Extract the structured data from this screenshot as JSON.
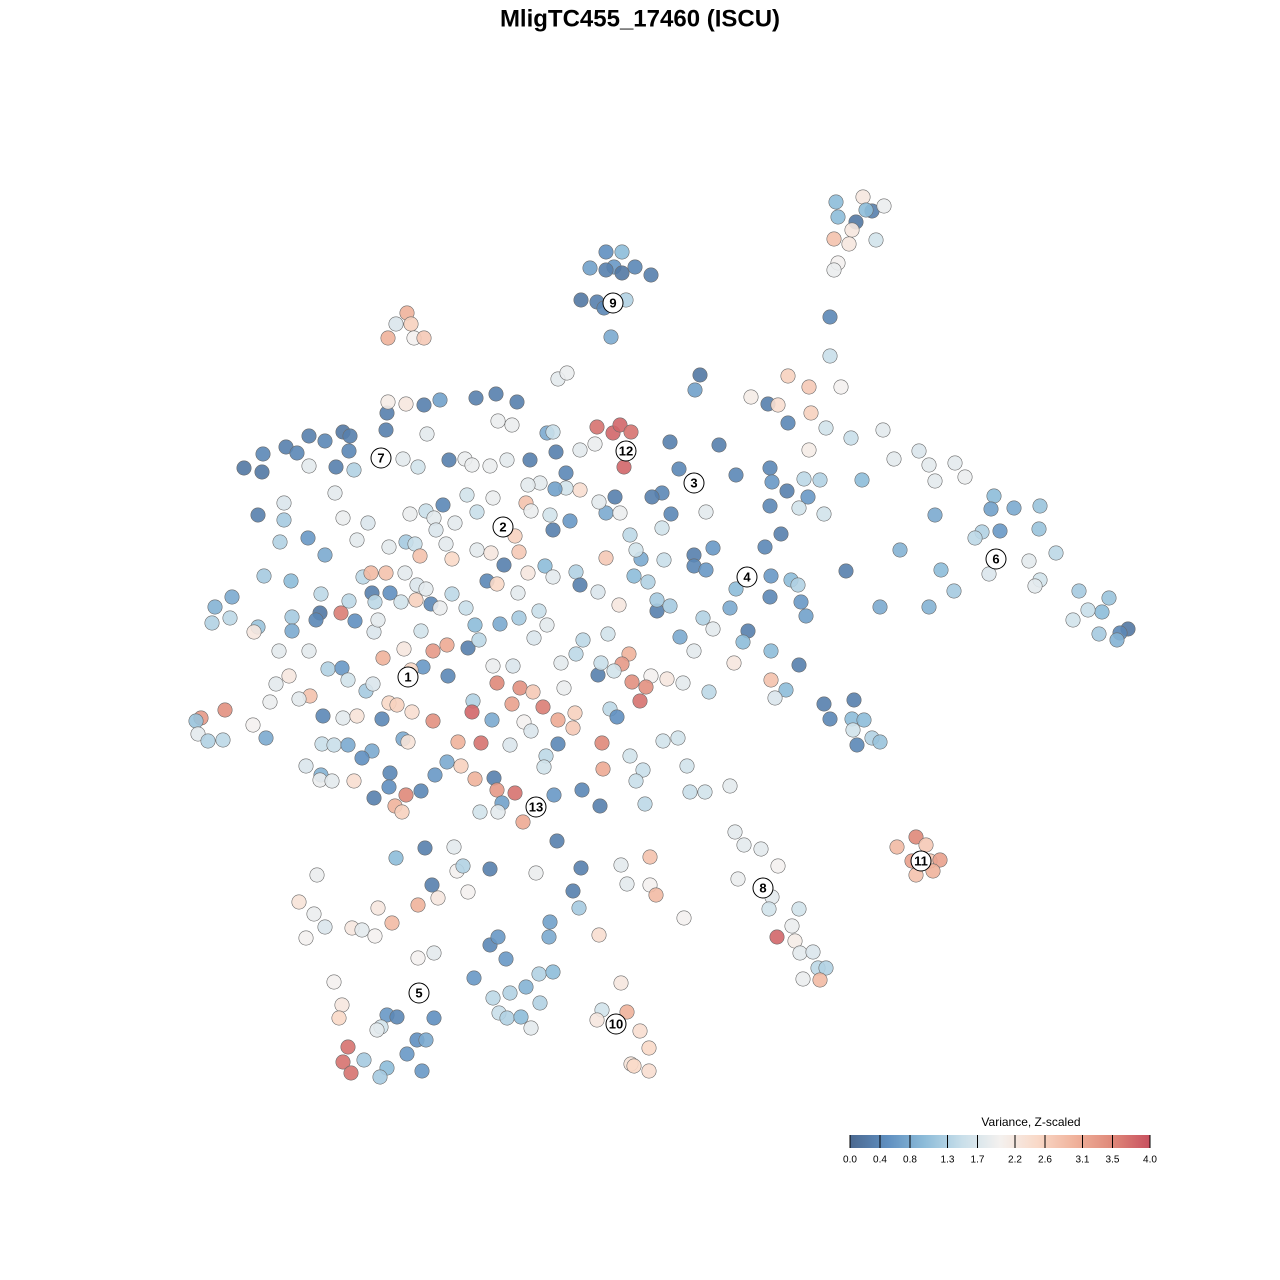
{
  "chart_data": {
    "type": "scatter",
    "title": "MligTC455_17460 (ISCU)",
    "xlim": [
      0,
      1280
    ],
    "ylim": [
      0,
      1280
    ],
    "x": [
      606,
      622,
      614,
      590,
      606,
      622,
      635,
      651,
      581,
      597,
      604,
      626,
      611,
      836,
      863,
      872,
      884,
      866,
      838,
      856,
      852,
      834,
      849,
      876,
      838,
      834,
      830,
      830,
      407,
      396,
      411,
      388,
      414,
      424,
      788,
      809,
      841,
      751,
      768,
      778,
      811,
      788,
      826,
      851,
      883,
      809,
      894,
      919,
      929,
      955,
      965,
      935,
      862,
      994,
      1014,
      1040,
      1039,
      991,
      935,
      982,
      975,
      1000,
      1056,
      1029,
      989,
      1040,
      1035,
      941,
      954,
      1079,
      1109,
      1102,
      1088,
      1128,
      1120,
      1099,
      1117,
      1073,
      929,
      880,
      846,
      900,
      916,
      926,
      897,
      912,
      930,
      940,
      933,
      916,
      735,
      744,
      761,
      778,
      738,
      772,
      769,
      799,
      792,
      777,
      795,
      800,
      813,
      818,
      826,
      803,
      820,
      621,
      602,
      627,
      597,
      640,
      649,
      631,
      634,
      649,
      334,
      342,
      339,
      434,
      387,
      397,
      381,
      377,
      417,
      426,
      348,
      364,
      407,
      387,
      422,
      343,
      351,
      380,
      490,
      498,
      550,
      549,
      506,
      474,
      539,
      553,
      493,
      510,
      526,
      540,
      499,
      507,
      521,
      531,
      317,
      299,
      314,
      325,
      306,
      352,
      362,
      375,
      378,
      392,
      418,
      438,
      432,
      457,
      463,
      468,
      490,
      536,
      573,
      579,
      581,
      425,
      396,
      454,
      557,
      418,
      434,
      627,
      650,
      621,
      650,
      656,
      684,
      599,
      244,
      262,
      263,
      286,
      297,
      309,
      325,
      343,
      350,
      349,
      336,
      354,
      309,
      387,
      386,
      388,
      406,
      424,
      440,
      476,
      496,
      517,
      498,
      512,
      427,
      403,
      418,
      449,
      465,
      472,
      490,
      507,
      530,
      547,
      553,
      556,
      566,
      580,
      595,
      597,
      613,
      620,
      631,
      624,
      670,
      679,
      719,
      558,
      567,
      700,
      695,
      770,
      736,
      772,
      787,
      804,
      820,
      808,
      799,
      824,
      770,
      781,
      765,
      713,
      694,
      694,
      706,
      736,
      770,
      791,
      801,
      806,
      798,
      771,
      730,
      748,
      743,
      771,
      799,
      734,
      771,
      786,
      775,
      824,
      854,
      830,
      852,
      864,
      853,
      872,
      880,
      857,
      662,
      652,
      671,
      706,
      662,
      258,
      284,
      284,
      280,
      308,
      325,
      343,
      368,
      335,
      264,
      291,
      321,
      232,
      215,
      212,
      230,
      258,
      254,
      292,
      320,
      316,
      292,
      341,
      355,
      374,
      378,
      279,
      309,
      276,
      289,
      310,
      299,
      270,
      253,
      266,
      225,
      201,
      196,
      198,
      208,
      223,
      328,
      342,
      348,
      366,
      373,
      323,
      343,
      357,
      382,
      389,
      397,
      412,
      433,
      403,
      408,
      372,
      322,
      334,
      348,
      362,
      306,
      321,
      320,
      332,
      354,
      390,
      389,
      374,
      395,
      402,
      406,
      421,
      435,
      447,
      357,
      389,
      406,
      415,
      420,
      446,
      452,
      477,
      491,
      519,
      528,
      504,
      487,
      497,
      518,
      545,
      553,
      576,
      580,
      598,
      606,
      634,
      648,
      641,
      664,
      636,
      630,
      606,
      620,
      599,
      615,
      580,
      566,
      555,
      540,
      528,
      526,
      515,
      531,
      550,
      553,
      570,
      493,
      477,
      467,
      443,
      426,
      434,
      410,
      436,
      455,
      417,
      405,
      390,
      401,
      416,
      426,
      431,
      440,
      466,
      452,
      372,
      363,
      371,
      386,
      375,
      349,
      383,
      404,
      421,
      433,
      447,
      468,
      448,
      423,
      411,
      479,
      475,
      500,
      519,
      534,
      547,
      539,
      513,
      493,
      497,
      520,
      533,
      564,
      473,
      472,
      492,
      512,
      524,
      543,
      558,
      575,
      573,
      558,
      546,
      544,
      510,
      531,
      481,
      458,
      461,
      475,
      494,
      497,
      515,
      502,
      480,
      498,
      523,
      554,
      582,
      600,
      603,
      602,
      630,
      643,
      636,
      645,
      663,
      678,
      687,
      690,
      705,
      730,
      709,
      683,
      667,
      651,
      646,
      632,
      640,
      629,
      622,
      614,
      598,
      601,
      576,
      583,
      561,
      610,
      617,
      657,
      657,
      680,
      694,
      713,
      703,
      670,
      619,
      608
    ],
    "y": [
      1028,
      1028,
      1013,
      1012,
      1010,
      1007,
      1013,
      1005,
      980,
      978,
      972,
      980,
      943,
      1078,
      1083,
      1069,
      1074,
      1070,
      1063,
      1058,
      1050,
      1041,
      1036,
      1040,
      1017,
      1010,
      963,
      924,
      967,
      956,
      956,
      942,
      942,
      942,
      904,
      893,
      893,
      883,
      876,
      875,
      867,
      857,
      852,
      842,
      850,
      830,
      821,
      829,
      815,
      817,
      803,
      799,
      800,
      784,
      772,
      774,
      751,
      771,
      765,
      748,
      742,
      749,
      727,
      719,
      706,
      700,
      694,
      710,
      689,
      689,
      682,
      668,
      670,
      651,
      647,
      646,
      640,
      660,
      673,
      673,
      709,
      730,
      443,
      435,
      433,
      419,
      419,
      420,
      409,
      405,
      448,
      435,
      431,
      414,
      401,
      383,
      371,
      371,
      354,
      343,
      339,
      327,
      328,
      312,
      312,
      301,
      300,
      297,
      270,
      268,
      260,
      249,
      232,
      216,
      214,
      209,
      298,
      275,
      262,
      262,
      265,
      263,
      253,
      250,
      240,
      240,
      233,
      220,
      226,
      212,
      209,
      218,
      207,
      203,
      335,
      343,
      358,
      343,
      321,
      302,
      306,
      308,
      282,
      287,
      293,
      277,
      267,
      262,
      263,
      252,
      405,
      378,
      366,
      353,
      342,
      352,
      350,
      344,
      372,
      357,
      375,
      382,
      395,
      409,
      414,
      388,
      411,
      407,
      389,
      372,
      412,
      432,
      422,
      433,
      439,
      322,
      327,
      396,
      395,
      415,
      423,
      385,
      362,
      345,
      812,
      808,
      826,
      833,
      827,
      844,
      839,
      848,
      844,
      829,
      813,
      810,
      814,
      867,
      850,
      878,
      876,
      875,
      880,
      882,
      886,
      878,
      859,
      855,
      846,
      821,
      813,
      820,
      821,
      815,
      814,
      820,
      820,
      847,
      848,
      828,
      807,
      830,
      836,
      853,
      847,
      855,
      848,
      813,
      838,
      811,
      835,
      901,
      907,
      905,
      890,
      812,
      805,
      798,
      789,
      801,
      800,
      783,
      772,
      766,
      774,
      746,
      733,
      732,
      725,
      714,
      710,
      691,
      683,
      700,
      678,
      664,
      695,
      704,
      672,
      649,
      638,
      629,
      615,
      617,
      600,
      590,
      582,
      576,
      580,
      561,
      561,
      560,
      550,
      542,
      538,
      535,
      787,
      783,
      766,
      768,
      752,
      765,
      777,
      760,
      738,
      742,
      725,
      762,
      757,
      787,
      704,
      699,
      686,
      683,
      673,
      657,
      662,
      653,
      648,
      663,
      667,
      660,
      649,
      667,
      659,
      648,
      660,
      629,
      629,
      596,
      604,
      584,
      581,
      578,
      555,
      542,
      570,
      562,
      559,
      546,
      539,
      540,
      611,
      612,
      600,
      589,
      596,
      564,
      562,
      564,
      561,
      577,
      575,
      568,
      559,
      541,
      538,
      529,
      536,
      535,
      535,
      522,
      514,
      505,
      500,
      499,
      499,
      507,
      493,
      482,
      474,
      468,
      485,
      489,
      505,
      518,
      740,
      733,
      738,
      736,
      724,
      736,
      721,
      730,
      727,
      728,
      707,
      715,
      699,
      696,
      687,
      714,
      703,
      708,
      695,
      688,
      722,
      704,
      698,
      721,
      720,
      730,
      745,
      767,
      767,
      778,
      783,
      790,
      792,
      791,
      797,
      795,
      777,
      744,
      769,
      765,
      750,
      759,
      782,
      768,
      785,
      775,
      769,
      762,
      766,
      750,
      757,
      695,
      707,
      687,
      678,
      680,
      691,
      676,
      672,
      672,
      686,
      687,
      703,
      707,
      707,
      678,
      679,
      622,
      631,
      649,
      629,
      635,
      632,
      604,
      613,
      610,
      640,
      655,
      656,
      662,
      642,
      655,
      669,
      614,
      614,
      597,
      592,
      588,
      592,
      579,
      568,
      560,
      576,
      558,
      573,
      560,
      567,
      552,
      536,
      524,
      513,
      535,
      549,
      537,
      538,
      514,
      501,
      502,
      490,
      487,
      477,
      468,
      468,
      458,
      485,
      490,
      474,
      511,
      537,
      524,
      510,
      499,
      476,
      539,
      542,
      514,
      488,
      488,
      494,
      588,
      597,
      601,
      604,
      593,
      598,
      579,
      626,
      616,
      609,
      605,
      617,
      626,
      640,
      617,
      571,
      563,
      669,
      680,
      643,
      629,
      651,
      662,
      674,
      675,
      646
    ],
    "values": [
      0.5,
      1.0,
      0.6,
      0.7,
      0.3,
      0.2,
      0.4,
      0.3,
      0.2,
      0.3,
      0.4,
      1.3,
      0.8,
      1.0,
      2.2,
      0.3,
      1.9,
      1.0,
      1.0,
      0.2,
      2.2,
      2.8,
      2.2,
      1.6,
      2.0,
      1.9,
      0.4,
      1.5,
      3.0,
      1.7,
      2.6,
      3.0,
      2.0,
      2.7,
      2.6,
      2.7,
      2.0,
      2.1,
      0.3,
      2.4,
      2.6,
      0.4,
      1.6,
      1.5,
      1.8,
      2.1,
      1.8,
      1.7,
      1.8,
      1.8,
      1.9,
      1.8,
      1.0,
      1.0,
      0.8,
      1.1,
      1.1,
      0.7,
      0.8,
      1.3,
      1.4,
      0.6,
      1.4,
      1.8,
      1.7,
      1.6,
      1.8,
      1.0,
      1.2,
      1.2,
      1.1,
      1.0,
      1.5,
      0.2,
      0.4,
      1.2,
      0.9,
      1.6,
      0.9,
      0.8,
      0.3,
      0.9,
      3.5,
      2.7,
      2.9,
      3.2,
      2.7,
      3.2,
      3.0,
      2.8,
      1.8,
      1.8,
      1.8,
      2.0,
      1.9,
      1.8,
      1.6,
      1.6,
      1.9,
      3.8,
      2.1,
      1.8,
      1.7,
      1.4,
      1.3,
      1.9,
      2.9,
      2.2,
      1.6,
      3.0,
      2.2,
      2.4,
      2.5,
      2.3,
      2.5,
      2.4,
      2.0,
      2.2,
      2.5,
      0.5,
      0.6,
      0.4,
      1.6,
      1.8,
      0.5,
      0.8,
      3.7,
      1.2,
      0.6,
      1.0,
      0.6,
      3.7,
      3.7,
      1.2,
      0.4,
      0.6,
      0.7,
      0.8,
      0.6,
      0.6,
      1.3,
      1.0,
      1.4,
      1.3,
      0.9,
      1.3,
      1.5,
      1.3,
      1.0,
      1.8,
      1.9,
      2.3,
      1.9,
      1.7,
      2.0,
      2.2,
      1.8,
      2.0,
      2.2,
      2.9,
      3.0,
      2.2,
      0.3,
      2.0,
      1.3,
      2.0,
      0.3,
      1.9,
      0.3,
      1.2,
      0.3,
      0.3,
      1.0,
      1.8,
      0.3,
      2.0,
      1.8,
      1.8,
      2.0,
      1.8,
      2.8,
      2.9,
      2.0,
      2.4,
      0.2,
      0.2,
      0.4,
      0.3,
      0.4,
      0.3,
      0.4,
      0.2,
      0.3,
      0.4,
      0.3,
      1.3,
      1.8,
      0.3,
      0.3,
      2.1,
      2.2,
      0.3,
      0.7,
      0.3,
      0.3,
      0.3,
      1.9,
      1.9,
      1.8,
      1.8,
      1.6,
      0.3,
      1.9,
      1.9,
      1.9,
      1.8,
      0.3,
      0.8,
      1.5,
      0.3,
      0.4,
      1.8,
      1.9,
      3.7,
      3.8,
      3.8,
      3.7,
      3.8,
      0.3,
      0.4,
      0.3,
      1.8,
      1.9,
      0.2,
      0.7,
      0.4,
      0.4,
      0.6,
      0.3,
      1.4,
      1.3,
      0.6,
      1.6,
      1.6,
      0.4,
      0.3,
      0.4,
      0.6,
      0.3,
      0.4,
      0.6,
      1.0,
      0.4,
      1.0,
      0.6,
      0.7,
      1.3,
      0.6,
      0.8,
      0.3,
      1.0,
      1.0,
      0.3,
      2.2,
      2.8,
      1.0,
      1.7,
      0.3,
      0.3,
      0.4,
      1.0,
      1.0,
      1.6,
      1.3,
      1.1,
      0.4,
      0.4,
      0.3,
      0.4,
      1.8,
      1.6,
      0.3,
      1.7,
      1.2,
      1.3,
      0.6,
      0.8,
      1.9,
      1.7,
      1.8,
      1.2,
      1.0,
      1.4,
      0.8,
      0.9,
      1.3,
      1.4,
      1.1,
      2.2,
      1.2,
      0.2,
      0.4,
      0.8,
      3.6,
      0.5,
      1.7,
      1.8,
      1.8,
      1.8,
      1.8,
      2.2,
      2.8,
      1.8,
      1.9,
      2.0,
      0.8,
      3.4,
      3.3,
      1.1,
      1.8,
      1.3,
      1.4,
      1.3,
      0.6,
      1.6,
      1.2,
      1.7,
      0.4,
      1.8,
      2.3,
      0.4,
      2.5,
      2.6,
      2.4,
      3.4,
      0.8,
      2.3,
      0.8,
      1.5,
      1.5,
      0.8,
      0.5,
      1.7,
      0.9,
      1.9,
      1.8,
      2.4,
      0.4,
      0.5,
      0.3,
      3.0,
      2.6,
      3.5,
      0.4,
      0.6,
      0.8,
      1.8,
      1.8,
      1.2,
      1.5,
      2.8,
      1.8,
      2.5,
      1.8,
      2.2,
      2.7,
      2.2,
      0.3,
      0.4,
      2.5,
      1.8,
      1.0,
      1.8,
      1.3,
      0.3,
      1.7,
      2.7,
      1.0,
      1.3,
      0.8,
      1.5,
      1.6,
      1.4,
      0.8,
      1.9,
      1.8,
      0.3,
      2.4,
      1.6,
      0.7,
      1.8,
      1.8,
      2.8,
      2.6,
      1.9,
      1.6,
      0.3,
      0.6,
      1.9,
      1.5,
      1.6,
      0.4,
      1.5,
      1.8,
      1.9,
      1.7,
      1.8,
      1.7,
      1.8,
      0.5,
      1.6,
      2.6,
      1.8,
      0.4,
      1.9,
      1.5,
      1.4,
      0.3,
      1.4,
      2.9,
      2.8,
      1.4,
      1.4,
      3.0,
      2.2,
      1.6,
      3.3,
      3.1,
      0.3,
      0.4,
      0.6,
      2.5,
      1.4,
      1.0,
      0.8,
      1.2,
      1.7,
      1.8,
      1.5,
      1.7,
      1.9,
      3.5,
      3.4,
      2.7,
      1.9,
      1.3,
      3.8,
      0.8,
      3.2,
      2.0,
      3.6,
      3.1,
      2.6,
      2.7,
      0.4,
      1.4,
      1.6,
      1.7,
      1.7,
      3.7,
      3.0,
      2.6,
      3.0,
      0.3,
      3.3,
      3.7,
      0.7,
      1.6,
      1.8,
      3.1,
      0.6,
      0.4,
      0.3,
      3.1,
      3.5,
      1.6,
      1.5,
      1.5,
      1.4,
      1.6,
      1.6,
      1.6,
      1.5,
      1.6,
      1.8,
      1.4,
      1.8,
      2.2,
      2.0,
      3.4,
      3.4,
      3.7,
      3.0,
      3.3,
      1.6,
      0.3,
      1.5,
      1.4,
      1.4,
      1.8,
      1.4,
      0.5,
      0.3,
      1.2,
      0.8,
      1.8,
      1.8,
      1.3,
      1.2,
      2.2,
      1.6
    ],
    "cluster_labels": [
      {
        "label": "1",
        "x": 408,
        "y": 603
      },
      {
        "label": "2",
        "x": 503,
        "y": 753
      },
      {
        "label": "3",
        "x": 694,
        "y": 797
      },
      {
        "label": "4",
        "x": 747,
        "y": 703
      },
      {
        "label": "5",
        "x": 419,
        "y": 287
      },
      {
        "label": "6",
        "x": 996,
        "y": 721
      },
      {
        "label": "7",
        "x": 381,
        "y": 822
      },
      {
        "label": "8",
        "x": 763,
        "y": 392
      },
      {
        "label": "9",
        "x": 613,
        "y": 977
      },
      {
        "label": "10",
        "x": 616,
        "y": 256
      },
      {
        "label": "11",
        "x": 921,
        "y": 419
      },
      {
        "label": "12",
        "x": 626,
        "y": 829
      },
      {
        "label": "13",
        "x": 536,
        "y": 473
      }
    ],
    "colorbar": {
      "title": "Variance, Z-scaled",
      "clim": [
        0,
        4
      ],
      "ticks": [
        {
          "value": 0,
          "label": "0.0"
        },
        0.4,
        0.8,
        1.3,
        1.7,
        2.2,
        2.6,
        3.1,
        3.5,
        {
          "value": 4,
          "label": "4.0"
        }
      ],
      "colors": [
        "#4a6890",
        "#5f8fc0",
        "#8dbcd9",
        "#c9dfea",
        "#f4f1ef",
        "#f9d9c8",
        "#f0b29b",
        "#df8879",
        "#c8505f"
      ]
    }
  }
}
